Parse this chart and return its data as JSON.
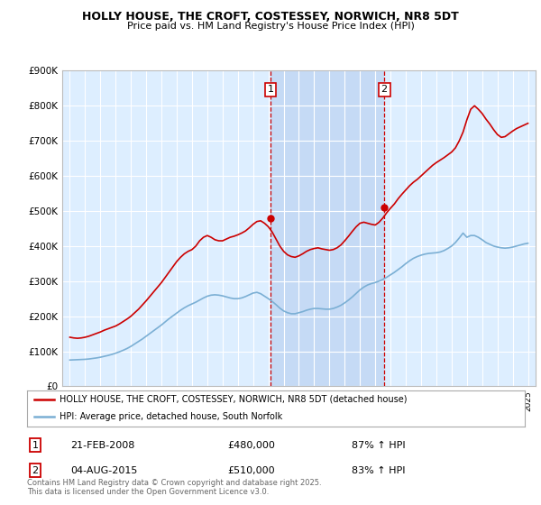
{
  "title": "HOLLY HOUSE, THE CROFT, COSTESSEY, NORWICH, NR8 5DT",
  "subtitle": "Price paid vs. HM Land Registry's House Price Index (HPI)",
  "legend_line1": "HOLLY HOUSE, THE CROFT, COSTESSEY, NORWICH, NR8 5DT (detached house)",
  "legend_line2": "HPI: Average price, detached house, South Norfolk",
  "footer": "Contains HM Land Registry data © Crown copyright and database right 2025.\nThis data is licensed under the Open Government Licence v3.0.",
  "purchase1_date": "21-FEB-2008",
  "purchase1_price": 480000,
  "purchase1_hpi": "87% ↑ HPI",
  "purchase1_year": 2008.13,
  "purchase2_date": "04-AUG-2015",
  "purchase2_price": 510000,
  "purchase2_hpi": "83% ↑ HPI",
  "purchase2_year": 2015.59,
  "ylim": [
    0,
    900000
  ],
  "xlim": [
    1994.5,
    2025.5
  ],
  "red_color": "#cc0000",
  "blue_color": "#7bafd4",
  "vline_color": "#cc0000",
  "background_color": "#ffffff",
  "plot_bg_color": "#ddeeff",
  "shade_color": "#c5daf5",
  "grid_color": "#ffffff",
  "yticks": [
    0,
    100000,
    200000,
    300000,
    400000,
    500000,
    600000,
    700000,
    800000,
    900000
  ],
  "ytick_labels": [
    "£0",
    "£100K",
    "£200K",
    "£300K",
    "£400K",
    "£500K",
    "£600K",
    "£700K",
    "£800K",
    "£900K"
  ],
  "xticks": [
    1995,
    1996,
    1997,
    1998,
    1999,
    2000,
    2001,
    2002,
    2003,
    2004,
    2005,
    2006,
    2007,
    2008,
    2009,
    2010,
    2011,
    2012,
    2013,
    2014,
    2015,
    2016,
    2017,
    2018,
    2019,
    2020,
    2021,
    2022,
    2023,
    2024,
    2025
  ],
  "red_x": [
    1995.0,
    1995.25,
    1995.5,
    1995.75,
    1996.0,
    1996.25,
    1996.5,
    1996.75,
    1997.0,
    1997.25,
    1997.5,
    1997.75,
    1998.0,
    1998.25,
    1998.5,
    1998.75,
    1999.0,
    1999.25,
    1999.5,
    1999.75,
    2000.0,
    2000.25,
    2000.5,
    2000.75,
    2001.0,
    2001.25,
    2001.5,
    2001.75,
    2002.0,
    2002.25,
    2002.5,
    2002.75,
    2003.0,
    2003.25,
    2003.5,
    2003.75,
    2004.0,
    2004.25,
    2004.5,
    2004.75,
    2005.0,
    2005.25,
    2005.5,
    2005.75,
    2006.0,
    2006.25,
    2006.5,
    2006.75,
    2007.0,
    2007.25,
    2007.5,
    2007.75,
    2008.0,
    2008.25,
    2008.5,
    2008.75,
    2009.0,
    2009.25,
    2009.5,
    2009.75,
    2010.0,
    2010.25,
    2010.5,
    2010.75,
    2011.0,
    2011.25,
    2011.5,
    2011.75,
    2012.0,
    2012.25,
    2012.5,
    2012.75,
    2013.0,
    2013.25,
    2013.5,
    2013.75,
    2014.0,
    2014.25,
    2014.5,
    2014.75,
    2015.0,
    2015.25,
    2015.5,
    2015.75,
    2016.0,
    2016.25,
    2016.5,
    2016.75,
    2017.0,
    2017.25,
    2017.5,
    2017.75,
    2018.0,
    2018.25,
    2018.5,
    2018.75,
    2019.0,
    2019.25,
    2019.5,
    2019.75,
    2020.0,
    2020.25,
    2020.5,
    2020.75,
    2021.0,
    2021.25,
    2021.5,
    2021.75,
    2022.0,
    2022.25,
    2022.5,
    2022.75,
    2023.0,
    2023.25,
    2023.5,
    2023.75,
    2024.0,
    2024.25,
    2024.5,
    2024.75,
    2025.0
  ],
  "red_y": [
    140000,
    138000,
    137000,
    138000,
    140000,
    143000,
    147000,
    151000,
    155000,
    160000,
    164000,
    168000,
    172000,
    178000,
    185000,
    192000,
    200000,
    210000,
    220000,
    232000,
    244000,
    257000,
    270000,
    283000,
    296000,
    311000,
    326000,
    341000,
    356000,
    368000,
    378000,
    385000,
    390000,
    400000,
    415000,
    425000,
    430000,
    425000,
    418000,
    415000,
    415000,
    420000,
    425000,
    428000,
    432000,
    437000,
    443000,
    452000,
    462000,
    470000,
    472000,
    465000,
    455000,
    440000,
    420000,
    400000,
    385000,
    375000,
    370000,
    368000,
    372000,
    378000,
    385000,
    390000,
    393000,
    395000,
    392000,
    390000,
    388000,
    390000,
    395000,
    403000,
    415000,
    428000,
    442000,
    455000,
    465000,
    468000,
    465000,
    462000,
    460000,
    468000,
    480000,
    495000,
    508000,
    520000,
    535000,
    548000,
    560000,
    572000,
    582000,
    590000,
    600000,
    610000,
    620000,
    630000,
    638000,
    645000,
    652000,
    660000,
    668000,
    680000,
    700000,
    725000,
    760000,
    790000,
    800000,
    790000,
    778000,
    762000,
    748000,
    732000,
    718000,
    710000,
    712000,
    720000,
    728000,
    735000,
    740000,
    745000,
    750000
  ],
  "blue_x": [
    1995.0,
    1995.25,
    1995.5,
    1995.75,
    1996.0,
    1996.25,
    1996.5,
    1996.75,
    1997.0,
    1997.25,
    1997.5,
    1997.75,
    1998.0,
    1998.25,
    1998.5,
    1998.75,
    1999.0,
    1999.25,
    1999.5,
    1999.75,
    2000.0,
    2000.25,
    2000.5,
    2000.75,
    2001.0,
    2001.25,
    2001.5,
    2001.75,
    2002.0,
    2002.25,
    2002.5,
    2002.75,
    2003.0,
    2003.25,
    2003.5,
    2003.75,
    2004.0,
    2004.25,
    2004.5,
    2004.75,
    2005.0,
    2005.25,
    2005.5,
    2005.75,
    2006.0,
    2006.25,
    2006.5,
    2006.75,
    2007.0,
    2007.25,
    2007.5,
    2007.75,
    2008.0,
    2008.25,
    2008.5,
    2008.75,
    2009.0,
    2009.25,
    2009.5,
    2009.75,
    2010.0,
    2010.25,
    2010.5,
    2010.75,
    2011.0,
    2011.25,
    2011.5,
    2011.75,
    2012.0,
    2012.25,
    2012.5,
    2012.75,
    2013.0,
    2013.25,
    2013.5,
    2013.75,
    2014.0,
    2014.25,
    2014.5,
    2014.75,
    2015.0,
    2015.25,
    2015.5,
    2015.75,
    2016.0,
    2016.25,
    2016.5,
    2016.75,
    2017.0,
    2017.25,
    2017.5,
    2017.75,
    2018.0,
    2018.25,
    2018.5,
    2018.75,
    2019.0,
    2019.25,
    2019.5,
    2019.75,
    2020.0,
    2020.25,
    2020.5,
    2020.75,
    2021.0,
    2021.25,
    2021.5,
    2021.75,
    2022.0,
    2022.25,
    2022.5,
    2022.75,
    2023.0,
    2023.25,
    2023.5,
    2023.75,
    2024.0,
    2024.25,
    2024.5,
    2024.75,
    2025.0
  ],
  "blue_y": [
    75000,
    75500,
    76000,
    76500,
    77000,
    78000,
    79500,
    81000,
    83000,
    85500,
    88000,
    91000,
    94500,
    98500,
    103000,
    108000,
    114000,
    121000,
    128000,
    135000,
    143000,
    151000,
    159000,
    167000,
    175000,
    184000,
    193000,
    201000,
    209000,
    217000,
    224000,
    230000,
    235000,
    240000,
    246000,
    252000,
    257000,
    260000,
    261000,
    260000,
    258000,
    255000,
    252000,
    250000,
    250000,
    252000,
    256000,
    261000,
    266000,
    268000,
    264000,
    257000,
    250000,
    242000,
    233000,
    223000,
    215000,
    210000,
    207000,
    207000,
    210000,
    213000,
    217000,
    220000,
    222000,
    222000,
    221000,
    220000,
    220000,
    222000,
    226000,
    231000,
    238000,
    246000,
    255000,
    265000,
    275000,
    283000,
    289000,
    293000,
    296000,
    300000,
    305000,
    311000,
    318000,
    325000,
    333000,
    341000,
    350000,
    358000,
    365000,
    370000,
    374000,
    377000,
    379000,
    380000,
    381000,
    383000,
    387000,
    393000,
    400000,
    410000,
    423000,
    437000,
    425000,
    430000,
    430000,
    425000,
    418000,
    410000,
    405000,
    400000,
    397000,
    395000,
    394000,
    395000,
    397000,
    400000,
    403000,
    406000,
    408000
  ]
}
